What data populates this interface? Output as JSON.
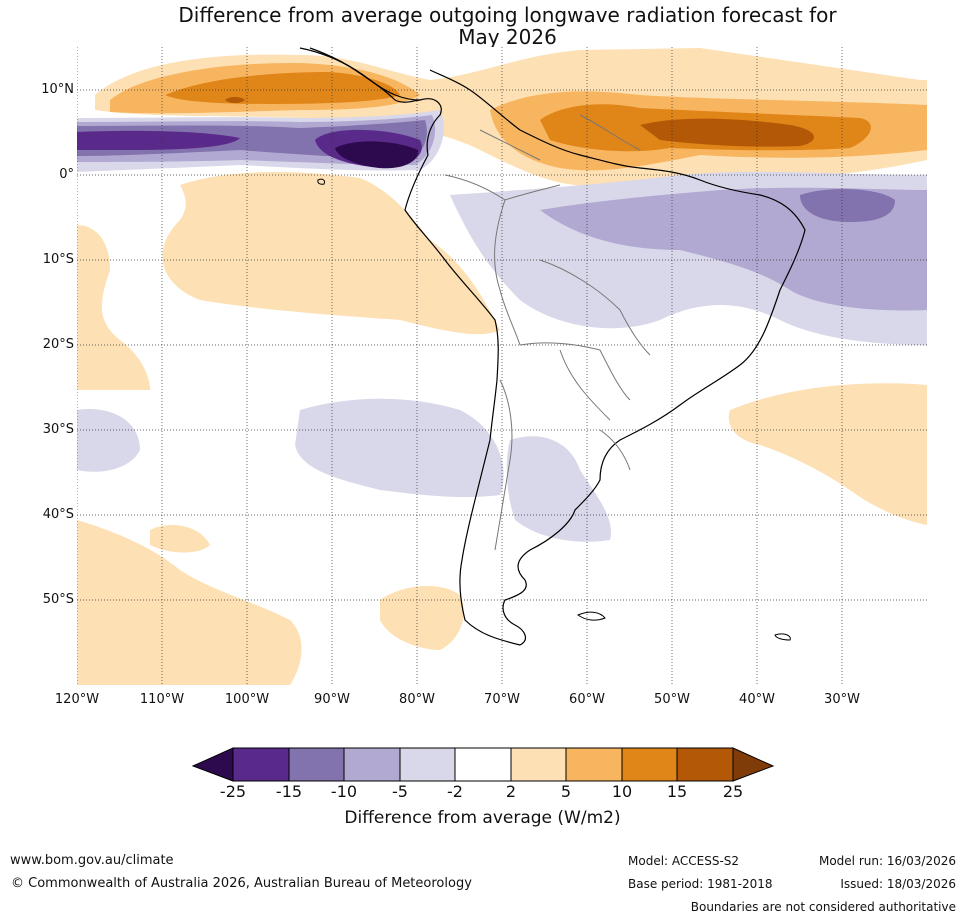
{
  "title_line1": "Difference from average outgoing longwave radiation forecast for",
  "title_line2": "May 2026",
  "lat_labels": [
    "10°N",
    "0°",
    "10°S",
    "20°S",
    "30°S",
    "40°S",
    "50°S"
  ],
  "lon_labels": [
    "120°W",
    "110°W",
    "100°W",
    "90°W",
    "80°W",
    "70°W",
    "60°W",
    "50°W",
    "40°W",
    "30°W"
  ],
  "colorbar": {
    "ticks": [
      "-25",
      "-15",
      "-10",
      "-5",
      "-2",
      "2",
      "5",
      "10",
      "15",
      "25"
    ],
    "colors": [
      "#2d0a4e",
      "#5a2a8a",
      "#8272ad",
      "#b1a9d1",
      "#d8d8ea",
      "#ffffff",
      "#fde0b3",
      "#f8b560",
      "#e08518",
      "#b35806",
      "#7f3b08"
    ],
    "label": "Difference from average (W/m2)"
  },
  "footer": {
    "website": "www.bom.gov.au/climate",
    "copyright": "© Commonwealth of Australia 2026, Australian Bureau of Meteorology",
    "model": "Model: ACCESS-S2",
    "base_period": "Base period: 1981-2018",
    "model_run": "Model run: 16/03/2026",
    "issued": "Issued: 18/03/2026",
    "disclaimer": "Boundaries are not considered authoritative"
  }
}
